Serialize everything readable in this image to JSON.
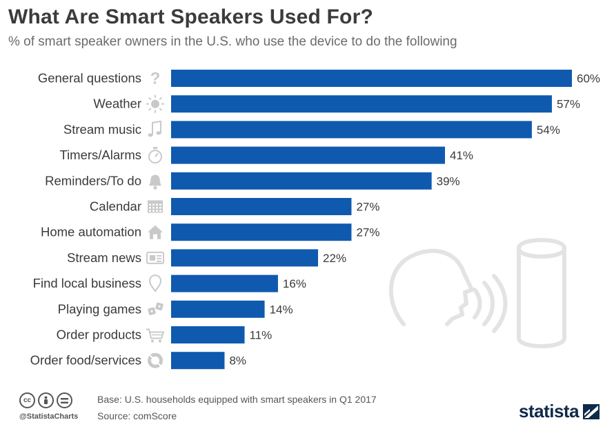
{
  "header": {
    "title": "What Are Smart Speakers Used For?",
    "subtitle": "% of smart speaker owners in the U.S. who use the device to do the following"
  },
  "colors": {
    "bar": "#0f5aaf",
    "icon": "#c9c9c9",
    "illustration": "#e3e3e3"
  },
  "chart_data": {
    "type": "bar",
    "orientation": "horizontal",
    "categories": [
      "General questions",
      "Weather",
      "Stream music",
      "Timers/Alarms",
      "Reminders/To do",
      "Calendar",
      "Home automation",
      "Stream news",
      "Find local business",
      "Playing games",
      "Order products",
      "Order food/services"
    ],
    "values": [
      60,
      57,
      54,
      41,
      39,
      27,
      27,
      22,
      16,
      14,
      11,
      8
    ],
    "value_labels": [
      "60%",
      "57%",
      "54%",
      "41%",
      "39%",
      "27%",
      "27%",
      "22%",
      "16%",
      "14%",
      "11%",
      "8%"
    ],
    "icons": [
      "question-icon",
      "sun-icon",
      "music-note-icon",
      "stopwatch-icon",
      "bell-icon",
      "calendar-icon",
      "house-icon",
      "newspaper-icon",
      "map-pin-icon",
      "dice-icon",
      "shopping-cart-icon",
      "plate-icon"
    ],
    "xlim": [
      0,
      60
    ],
    "grid": false,
    "legend": "none"
  },
  "footer": {
    "cc_icons": [
      "cc-icon",
      "by-icon",
      "nd-icon"
    ],
    "handle": "@StatistaCharts",
    "base": "Base: U.S. households equipped with smart speakers in Q1 2017",
    "source": "Source: comScore",
    "logo": "statista"
  }
}
